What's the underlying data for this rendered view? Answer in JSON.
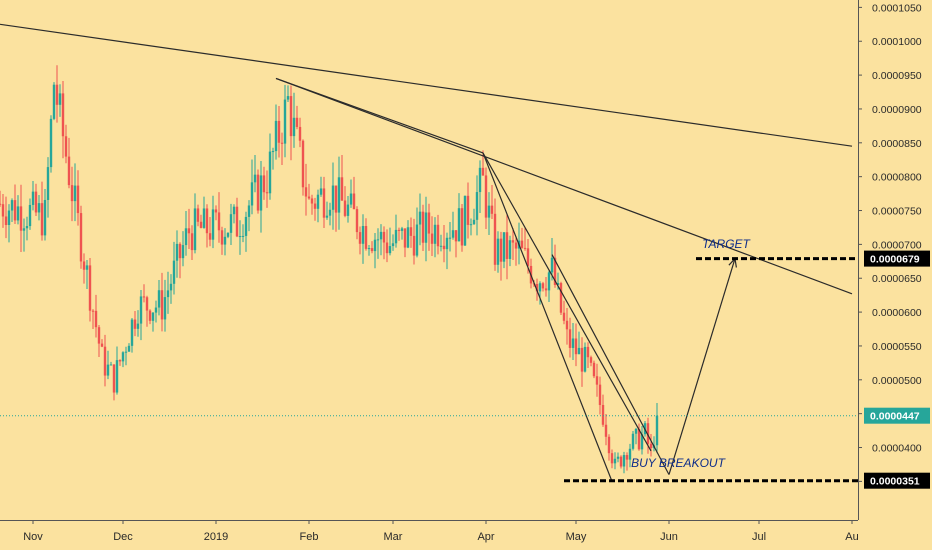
{
  "colors": {
    "background": "#FBE29F",
    "up": "#26a69a",
    "down": "#ef5350",
    "trendline": "#2b2b2b",
    "annotation": "#0d2c8a",
    "level_line": "#000000",
    "last_price_tag": "#26a69a",
    "last_price_line": "#26a69a"
  },
  "chart_data": {
    "type": "candlestick",
    "y_axis": {
      "position": "right",
      "range": [
        2.9e-05,
        0.0001055
      ],
      "tick_labels": [
        "0.0001050",
        "0.0001000",
        "0.0000950",
        "0.0000900",
        "0.0000850",
        "0.0000800",
        "0.0000750",
        "0.0000700",
        "0.0000650",
        "0.0000600",
        "0.0000550",
        "0.0000500",
        "0.0000450",
        "0.0000400",
        "0.0000350"
      ],
      "tick_values": [
        0.000105,
        0.0001,
        9.5e-05,
        9e-05,
        8.5e-05,
        8e-05,
        7.5e-05,
        7e-05,
        6.5e-05,
        6e-05,
        5.5e-05,
        5e-05,
        4.5e-05,
        4e-05,
        3.5e-05
      ]
    },
    "x_axis": {
      "range": [
        "2018-10-21",
        "2019-08-01"
      ],
      "tick_labels": [
        "Nov",
        "Dec",
        "2019",
        "Feb",
        "Mar",
        "Apr",
        "May",
        "Jun",
        "Jul",
        "Au"
      ],
      "tick_dates": [
        "2018-11-01",
        "2018-12-01",
        "2019-01-01",
        "2019-02-01",
        "2019-03-01",
        "2019-04-01",
        "2019-05-01",
        "2019-06-01",
        "2019-07-01",
        "2019-08-01"
      ]
    },
    "last_price": {
      "label": "0.0000447",
      "value": 4.47e-05
    },
    "levels": [
      {
        "label": "0.0000679",
        "value": 6.79e-05,
        "from": "2019-06-10",
        "name": "TARGET"
      },
      {
        "label": "0.0000351",
        "value": 3.51e-05,
        "from": "2019-04-27",
        "name": "BUY BREAKOUT"
      }
    ],
    "anchors": [
      {
        "date": "2018-10-21",
        "close": 7.6e-05
      },
      {
        "date": "2018-11-05",
        "close": 7.4e-05
      },
      {
        "date": "2018-11-08",
        "close": 9.4e-05
      },
      {
        "date": "2018-11-14",
        "close": 7.8e-05
      },
      {
        "date": "2018-11-24",
        "close": 5.3e-05
      },
      {
        "date": "2018-11-28",
        "close": 5e-05
      },
      {
        "date": "2018-12-06",
        "close": 6.1e-05
      },
      {
        "date": "2018-12-14",
        "close": 6.1e-05
      },
      {
        "date": "2018-12-23",
        "close": 7.2e-05
      },
      {
        "date": "2019-01-08",
        "close": 7.3e-05
      },
      {
        "date": "2019-01-18",
        "close": 8e-05
      },
      {
        "date": "2019-01-25",
        "close": 9.1e-05
      },
      {
        "date": "2019-02-01",
        "close": 7.6e-05
      },
      {
        "date": "2019-02-08",
        "close": 7.8e-05
      },
      {
        "date": "2019-02-20",
        "close": 7.2e-05
      },
      {
        "date": "2019-02-28",
        "close": 7e-05
      },
      {
        "date": "2019-03-11",
        "close": 7.2e-05
      },
      {
        "date": "2019-03-24",
        "close": 7.3e-05
      },
      {
        "date": "2019-03-31",
        "close": 7.9e-05
      },
      {
        "date": "2019-04-04",
        "close": 6.9e-05
      },
      {
        "date": "2019-04-12",
        "close": 6.9e-05
      },
      {
        "date": "2019-04-18",
        "close": 6.5e-05
      },
      {
        "date": "2019-04-23",
        "close": 6.6e-05
      },
      {
        "date": "2019-04-28",
        "close": 5.6e-05
      },
      {
        "date": "2019-05-05",
        "close": 5.2e-05
      },
      {
        "date": "2019-05-10",
        "close": 4.5e-05
      },
      {
        "date": "2019-05-14",
        "close": 3.7e-05
      },
      {
        "date": "2019-05-18",
        "close": 4e-05
      },
      {
        "date": "2019-05-24",
        "close": 4.2e-05
      },
      {
        "date": "2019-05-26",
        "close": 3.9e-05
      },
      {
        "date": "2019-05-28",
        "close": 4.47e-05
      }
    ],
    "trendlines": [
      {
        "from": {
          "date": "2018-10-21",
          "value": 0.0001025
        },
        "to": {
          "date": "2019-08-01",
          "value": 8.45e-05
        }
      },
      {
        "from": {
          "date": "2019-01-21",
          "value": 9.45e-05
        },
        "to": {
          "date": "2019-08-01",
          "value": 6.27e-05
        }
      },
      {
        "from": {
          "date": "2019-01-21",
          "value": 9.45e-05
        },
        "to": {
          "date": "2019-03-31",
          "value": 8.35e-05
        }
      },
      {
        "from": {
          "date": "2019-03-31",
          "value": 8.35e-05
        },
        "to": {
          "date": "2019-05-26",
          "value": 3.95e-05
        }
      },
      {
        "from": {
          "date": "2019-03-31",
          "value": 8.35e-05
        },
        "to": {
          "date": "2019-05-13",
          "value": 3.5e-05
        }
      },
      {
        "from": {
          "date": "2019-04-23",
          "value": 6.85e-05
        },
        "to": {
          "date": "2019-06-01",
          "value": 3.6e-05
        }
      }
    ],
    "projection_arrow": [
      {
        "date": "2019-06-01",
        "value": 3.6e-05
      },
      {
        "date": "2019-06-23",
        "value": 6.79e-05
      }
    ],
    "annotations": [
      {
        "text": "TARGET",
        "date": "2019-06-20",
        "value": 6.95e-05
      },
      {
        "text": "BUY BREAKOUT",
        "date": "2019-06-04",
        "value": 3.71e-05
      }
    ],
    "grid": false
  }
}
